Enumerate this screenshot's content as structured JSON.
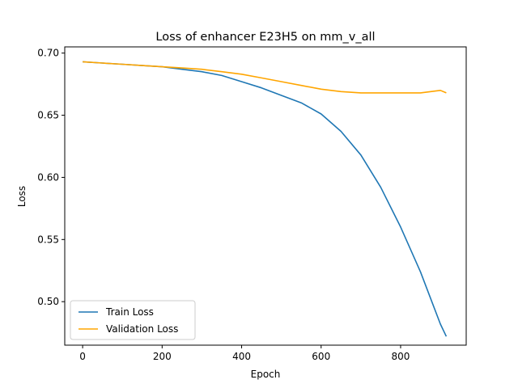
{
  "chart_data": {
    "type": "line",
    "title": "Loss of enhancer E23H5 on mm_v_all",
    "xlabel": "Epoch",
    "ylabel": "Loss",
    "xlim": [
      -45,
      965
    ],
    "ylim": [
      0.465,
      0.705
    ],
    "xticks": [
      0,
      200,
      400,
      600,
      800
    ],
    "yticks": [
      0.5,
      0.55,
      0.6,
      0.65,
      0.7
    ],
    "xtick_labels": [
      "0",
      "200",
      "400",
      "600",
      "800"
    ],
    "ytick_labels": [
      "0.50",
      "0.55",
      "0.60",
      "0.65",
      "0.70"
    ],
    "grid": false,
    "legend_position": "lower-left",
    "series": [
      {
        "name": "Train Loss",
        "color": "#1f77b4",
        "x": [
          0,
          50,
          100,
          150,
          200,
          250,
          300,
          350,
          400,
          450,
          500,
          550,
          600,
          650,
          700,
          750,
          800,
          850,
          900,
          915
        ],
        "y": [
          0.693,
          0.692,
          0.691,
          0.69,
          0.689,
          0.687,
          0.685,
          0.682,
          0.677,
          0.672,
          0.666,
          0.66,
          0.651,
          0.637,
          0.618,
          0.592,
          0.56,
          0.524,
          0.482,
          0.472
        ]
      },
      {
        "name": "Validation Loss",
        "color": "#ffa500",
        "x": [
          0,
          50,
          100,
          150,
          200,
          250,
          300,
          350,
          400,
          450,
          500,
          550,
          600,
          650,
          700,
          750,
          800,
          850,
          900,
          915
        ],
        "y": [
          0.693,
          0.692,
          0.691,
          0.69,
          0.689,
          0.688,
          0.687,
          0.685,
          0.683,
          0.68,
          0.677,
          0.674,
          0.671,
          0.669,
          0.668,
          0.668,
          0.668,
          0.668,
          0.67,
          0.668
        ]
      }
    ]
  }
}
